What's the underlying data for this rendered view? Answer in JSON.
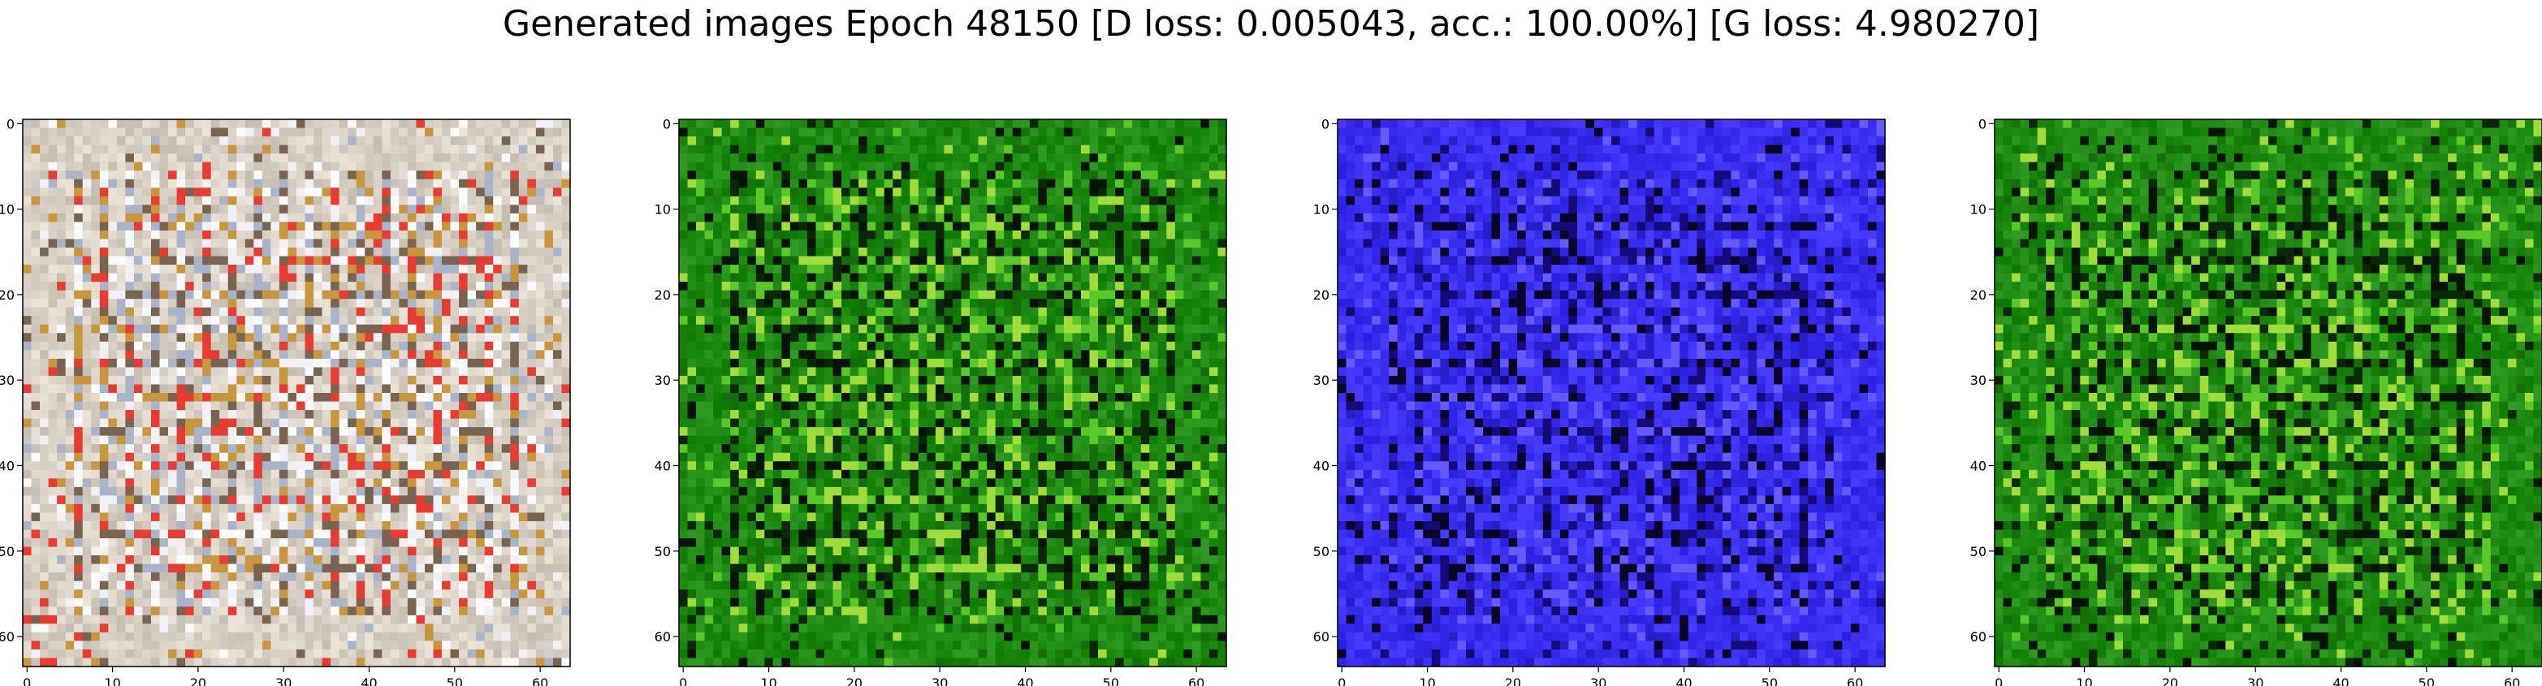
{
  "figure": {
    "title": "Generated images Epoch 48150 [D loss: 0.005043, acc.: 100.00%] [G loss: 4.980270]"
  },
  "chart_data": [
    {
      "type": "heatmap",
      "image_resolution": [
        64,
        64
      ],
      "dominant_color": "#d8d0c4",
      "xticks": [
        "0",
        "10",
        "20",
        "30",
        "40",
        "50",
        "60"
      ],
      "yticks": [
        "0",
        "10",
        "20",
        "30",
        "40",
        "50",
        "60"
      ],
      "xlim": [
        -0.5,
        63.5
      ],
      "ylim": [
        63.5,
        -0.5
      ],
      "grid": false
    },
    {
      "type": "heatmap",
      "image_resolution": [
        64,
        64
      ],
      "dominant_color": "#1f8a12",
      "xticks": [
        "0",
        "10",
        "20",
        "30",
        "40",
        "50",
        "60"
      ],
      "yticks": [
        "0",
        "10",
        "20",
        "30",
        "40",
        "50",
        "60"
      ],
      "xlim": [
        -0.5,
        63.5
      ],
      "ylim": [
        63.5,
        -0.5
      ],
      "grid": false
    },
    {
      "type": "heatmap",
      "image_resolution": [
        64,
        64
      ],
      "dominant_color": "#3a2ef0",
      "xticks": [
        "0",
        "10",
        "20",
        "30",
        "40",
        "50",
        "60"
      ],
      "yticks": [
        "0",
        "10",
        "20",
        "30",
        "40",
        "50",
        "60"
      ],
      "xlim": [
        -0.5,
        63.5
      ],
      "ylim": [
        63.5,
        -0.5
      ],
      "grid": false
    },
    {
      "type": "heatmap",
      "image_resolution": [
        64,
        64
      ],
      "dominant_color": "#1f8a12",
      "xticks": [
        "0",
        "10",
        "20",
        "30",
        "40",
        "50",
        "60"
      ],
      "yticks": [
        "0",
        "10",
        "20",
        "30",
        "40",
        "50",
        "60"
      ],
      "xlim": [
        -0.5,
        63.5
      ],
      "ylim": [
        63.5,
        -0.5
      ],
      "grid": false
    }
  ]
}
